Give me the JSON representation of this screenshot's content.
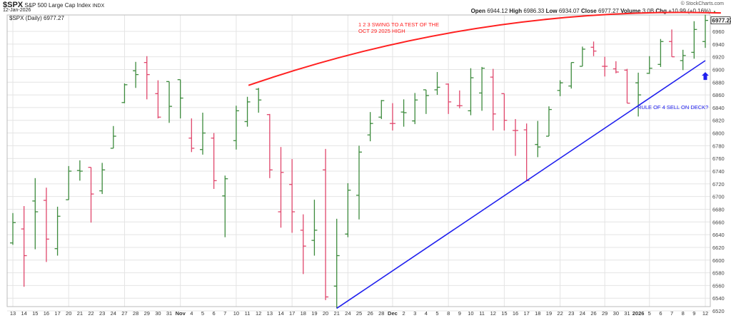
{
  "header": {
    "symbol": "$SPX",
    "name": "S&P 500 Large Cap Index",
    "exchange": "INDX",
    "date": "12-Jan-2026",
    "legend": "$SPX (Daily) 6977.27",
    "watermark": "© StockCharts.com",
    "open_label": "Open",
    "open": "6944.12",
    "high_label": "High",
    "high": "6986.33",
    "low_label": "Low",
    "low": "6934.07",
    "close_label": "Close",
    "close": "6977.27",
    "volume_label": "Volume",
    "volume": "3.0B",
    "chg_label": "Chg",
    "chg": "+10.99 (+0.16%)",
    "chg_icon": "triangle-up-icon"
  },
  "chart_data": {
    "type": "ohlc",
    "title": "$SPX (Daily) 6977.27",
    "last_price_label": "6977.27",
    "ylim": [
      6515,
      6990
    ],
    "yticks": [
      6520,
      6540,
      6560,
      6580,
      6600,
      6620,
      6640,
      6660,
      6680,
      6700,
      6720,
      6740,
      6760,
      6780,
      6800,
      6820,
      6840,
      6860,
      6880,
      6900,
      6920,
      6940,
      6960
    ],
    "grid": true,
    "colors": {
      "up": "#3d8b3d",
      "down": "#e0476c",
      "trend_red": "#ff2020",
      "trend_blue": "#2020ee"
    },
    "x_labels": [
      "13",
      "14",
      "15",
      "16",
      "17",
      "20",
      "21",
      "22",
      "23",
      "24",
      "27",
      "28",
      "29",
      "30",
      "31",
      "Nov",
      "4",
      "5",
      "6",
      "7",
      "10",
      "11",
      "12",
      "13",
      "14",
      "17",
      "18",
      "19",
      "20",
      "21",
      "24",
      "25",
      "26",
      "28",
      "Dec",
      "2",
      "3",
      "4",
      "5",
      "8",
      "9",
      "10",
      "11",
      "12",
      "15",
      "16",
      "17",
      "18",
      "19",
      "22",
      "23",
      "24",
      "26",
      "29",
      "30",
      "31",
      "2026",
      "5",
      "6",
      "7",
      "8",
      "9",
      "12"
    ],
    "bold_labels": [
      "Nov",
      "Dec",
      "2026"
    ],
    "bars": [
      {
        "o": 6627,
        "h": 6674,
        "l": 6624,
        "c": 6659,
        "dir": "up"
      },
      {
        "o": 6649,
        "h": 6685,
        "l": 6558,
        "c": 6607,
        "dir": "down"
      },
      {
        "o": 6693,
        "h": 6729,
        "l": 6617,
        "c": 6676,
        "dir": "up"
      },
      {
        "o": 6694,
        "h": 6714,
        "l": 6597,
        "c": 6633,
        "dir": "down"
      },
      {
        "o": 6618,
        "h": 6684,
        "l": 6607,
        "c": 6669,
        "dir": "up"
      },
      {
        "o": 6695,
        "h": 6748,
        "l": 6695,
        "c": 6740,
        "dir": "up"
      },
      {
        "o": 6741,
        "h": 6757,
        "l": 6725,
        "c": 6740,
        "dir": "up"
      },
      {
        "o": 6746,
        "h": 6746,
        "l": 6659,
        "c": 6704,
        "dir": "down"
      },
      {
        "o": 6709,
        "h": 6753,
        "l": 6704,
        "c": 6742,
        "dir": "up"
      },
      {
        "o": 6776,
        "h": 6811,
        "l": 6776,
        "c": 6795,
        "dir": "up"
      },
      {
        "o": 6848,
        "h": 6878,
        "l": 6847,
        "c": 6876,
        "dir": "up"
      },
      {
        "o": 6898,
        "h": 6912,
        "l": 6871,
        "c": 6892,
        "dir": "up"
      },
      {
        "o": 6911,
        "h": 6921,
        "l": 6853,
        "c": 6892,
        "dir": "down"
      },
      {
        "o": 6862,
        "h": 6883,
        "l": 6823,
        "c": 6825,
        "dir": "down"
      },
      {
        "o": 6881,
        "h": 6881,
        "l": 6816,
        "c": 6842,
        "dir": "up"
      },
      {
        "o": 6884,
        "h": 6884,
        "l": 6823,
        "c": 6855,
        "dir": "up"
      },
      {
        "o": 6792,
        "h": 6823,
        "l": 6770,
        "c": 6776,
        "dir": "down"
      },
      {
        "o": 6774,
        "h": 6832,
        "l": 6766,
        "c": 6800,
        "dir": "up"
      },
      {
        "o": 6792,
        "h": 6800,
        "l": 6712,
        "c": 6725,
        "dir": "down"
      },
      {
        "o": 6701,
        "h": 6733,
        "l": 6636,
        "c": 6728,
        "dir": "up"
      },
      {
        "o": 6788,
        "h": 6843,
        "l": 6774,
        "c": 6835,
        "dir": "up"
      },
      {
        "o": 6818,
        "h": 6857,
        "l": 6810,
        "c": 6849,
        "dir": "up"
      },
      {
        "o": 6869,
        "h": 6871,
        "l": 6832,
        "c": 6852,
        "dir": "up"
      },
      {
        "o": 6829,
        "h": 6830,
        "l": 6729,
        "c": 6742,
        "dir": "down"
      },
      {
        "o": 6676,
        "h": 6778,
        "l": 6651,
        "c": 6738,
        "dir": "down"
      },
      {
        "o": 6719,
        "h": 6759,
        "l": 6643,
        "c": 6676,
        "dir": "down"
      },
      {
        "o": 6647,
        "h": 6672,
        "l": 6578,
        "c": 6622,
        "dir": "down"
      },
      {
        "o": 6631,
        "h": 6695,
        "l": 6607,
        "c": 6647,
        "dir": "up"
      },
      {
        "o": 6742,
        "h": 6775,
        "l": 6537,
        "c": 6542,
        "dir": "down"
      },
      {
        "o": 6559,
        "h": 6665,
        "l": 6524,
        "c": 6607,
        "dir": "up"
      },
      {
        "o": 6641,
        "h": 6721,
        "l": 6636,
        "c": 6710,
        "dir": "up"
      },
      {
        "o": 6702,
        "h": 6780,
        "l": 6664,
        "c": 6770,
        "dir": "up"
      },
      {
        "o": 6797,
        "h": 6833,
        "l": 6787,
        "c": 6815,
        "dir": "up"
      },
      {
        "o": 6825,
        "h": 6852,
        "l": 6822,
        "c": 6851,
        "dir": "up"
      },
      {
        "o": 6815,
        "h": 6847,
        "l": 6804,
        "c": 6815,
        "dir": "down"
      },
      {
        "o": 6833,
        "h": 6853,
        "l": 6810,
        "c": 6832,
        "dir": "up"
      },
      {
        "o": 6819,
        "h": 6863,
        "l": 6814,
        "c": 6852,
        "dir": "up"
      },
      {
        "o": 6868,
        "h": 6868,
        "l": 6830,
        "c": 6859,
        "dir": "up"
      },
      {
        "o": 6868,
        "h": 6896,
        "l": 6860,
        "c": 6872,
        "dir": "up"
      },
      {
        "o": 6877,
        "h": 6878,
        "l": 6830,
        "c": 6849,
        "dir": "down"
      },
      {
        "o": 6843,
        "h": 6867,
        "l": 6839,
        "c": 6843,
        "dir": "down"
      },
      {
        "o": 6835,
        "h": 6902,
        "l": 6828,
        "c": 6887,
        "dir": "up"
      },
      {
        "o": 6863,
        "h": 6904,
        "l": 6835,
        "c": 6902,
        "dir": "up"
      },
      {
        "o": 6888,
        "h": 6901,
        "l": 6804,
        "c": 6830,
        "dir": "down"
      },
      {
        "o": 6862,
        "h": 6862,
        "l": 6804,
        "c": 6820,
        "dir": "down"
      },
      {
        "o": 6804,
        "h": 6822,
        "l": 6764,
        "c": 6804,
        "dir": "down"
      },
      {
        "o": 6805,
        "h": 6815,
        "l": 6725,
        "c": 6725,
        "dir": "down"
      },
      {
        "o": 6782,
        "h": 6819,
        "l": 6762,
        "c": 6778,
        "dir": "up"
      },
      {
        "o": 6795,
        "h": 6842,
        "l": 6795,
        "c": 6837,
        "dir": "up"
      },
      {
        "o": 6867,
        "h": 6883,
        "l": 6858,
        "c": 6879,
        "dir": "up"
      },
      {
        "o": 6874,
        "h": 6911,
        "l": 6870,
        "c": 6911,
        "dir": "up"
      },
      {
        "o": 6905,
        "h": 6936,
        "l": 6905,
        "c": 6932,
        "dir": "up"
      },
      {
        "o": 6935,
        "h": 6944,
        "l": 6921,
        "c": 6929,
        "dir": "down"
      },
      {
        "o": 6905,
        "h": 6920,
        "l": 6889,
        "c": 6905,
        "dir": "down"
      },
      {
        "o": 6901,
        "h": 6913,
        "l": 6894,
        "c": 6896,
        "dir": "down"
      },
      {
        "o": 6899,
        "h": 6901,
        "l": 6847,
        "c": 6847,
        "dir": "down"
      },
      {
        "o": 6879,
        "h": 6895,
        "l": 6826,
        "c": 6860,
        "dir": "up"
      },
      {
        "o": 6894,
        "h": 6921,
        "l": 6893,
        "c": 6902,
        "dir": "up"
      },
      {
        "o": 6908,
        "h": 6948,
        "l": 6904,
        "c": 6944,
        "dir": "up"
      },
      {
        "o": 6944,
        "h": 6963,
        "l": 6920,
        "c": 6920,
        "dir": "down"
      },
      {
        "o": 6914,
        "h": 6931,
        "l": 6899,
        "c": 6922,
        "dir": "up"
      },
      {
        "o": 6927,
        "h": 6976,
        "l": 6917,
        "c": 6963,
        "dir": "up"
      },
      {
        "o": 6944,
        "h": 6986.33,
        "l": 6934.07,
        "c": 6977.27,
        "dir": "up"
      }
    ],
    "annotations": {
      "red_curve": {
        "start": {
          "bar": 21.1,
          "price": 6875
        },
        "mid": {
          "bar": 42,
          "price": 6966
        },
        "end": {
          "bar": 63.4,
          "price": 6989
        }
      },
      "blue_line": {
        "start": {
          "bar": 29,
          "price": 6524
        },
        "end": {
          "bar": 62,
          "price": 6914
        }
      },
      "red_text_1": "1 2 3 SWING TO A TEST OF THE",
      "red_text_2": "OCT 29 2025 HIGH",
      "blue_text": "RULE OF 4 SELL ON DECK?",
      "arrow": {
        "bar": 62,
        "price": 6888,
        "icon": "arrow-up-icon"
      }
    }
  }
}
